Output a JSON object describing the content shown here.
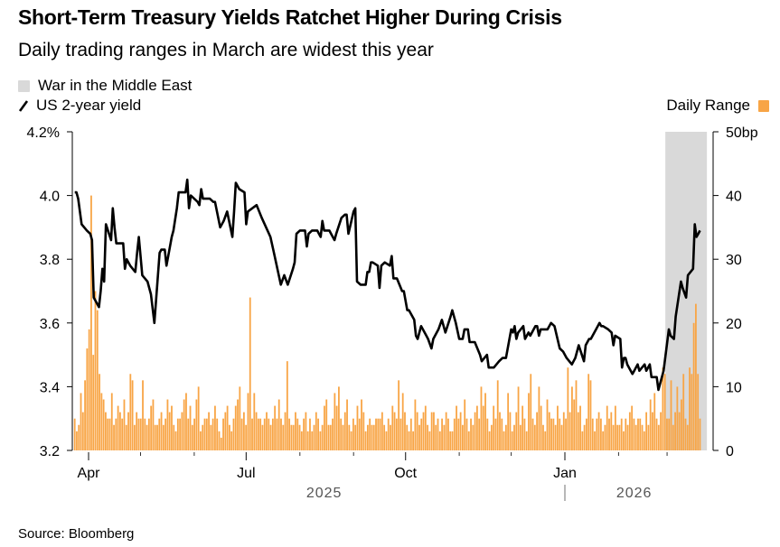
{
  "header": {
    "title": "Short-Term Treasury Yields Ratchet Higher During Crisis",
    "subtitle": "Daily trading ranges in March are widest this year"
  },
  "legend": {
    "shade_label": "War in the Middle East",
    "line_label": "US 2-year yield",
    "bar_label": "Daily Range"
  },
  "footer": {
    "source": "Source: Bloomberg"
  },
  "colors": {
    "line": "#000000",
    "bar": "#f8a546",
    "shade": "#d9d9d9",
    "axis": "#000000",
    "year_label": "#555555"
  },
  "chart_data": {
    "type": "line+bar",
    "title": "Short-Term Treasury Yields Ratchet Higher During Crisis",
    "subtitle": "Daily trading ranges in March are widest this year",
    "left_axis": {
      "label": "US 2-year yield (%)",
      "ylim": [
        3.2,
        4.2
      ],
      "ticks": [
        "3.2",
        "3.4",
        "3.6",
        "3.8",
        "4.0",
        "4.2%"
      ],
      "tick_values": [
        3.2,
        3.4,
        3.6,
        3.8,
        4.0,
        4.2
      ]
    },
    "right_axis": {
      "label": "Daily Range (bp)",
      "ylim": [
        0,
        50
      ],
      "ticks": [
        "0",
        "10",
        "20",
        "30",
        "40",
        "50bp"
      ],
      "tick_values": [
        0,
        10,
        20,
        30,
        40,
        50
      ]
    },
    "x_axis": {
      "start": "2025-03-21",
      "end": "2026-03-24",
      "major_ticks": [
        {
          "date": "2025-04-01",
          "label": "Apr"
        },
        {
          "date": "2025-07-01",
          "label": "Jul"
        },
        {
          "date": "2025-10-01",
          "label": "Oct"
        },
        {
          "date": "2026-01-01",
          "label": "Jan"
        }
      ],
      "minor_ticks": [
        "2025-05-01",
        "2025-06-01",
        "2025-08-01",
        "2025-09-01",
        "2025-11-01",
        "2025-12-01",
        "2026-02-01",
        "2026-03-01"
      ],
      "year_labels": [
        {
          "date": "2025-08-15",
          "label": "2025"
        },
        {
          "date": "2026-02-10",
          "label": "2026"
        }
      ],
      "year_divider": "2026-01-01"
    },
    "shaded_region": {
      "label": "War in the Middle East",
      "start": "2026-02-28",
      "end": "2026-03-24"
    },
    "line_series": {
      "name": "US 2-year yield",
      "points": [
        [
          "2025-03-24",
          4.01
        ],
        [
          "2025-03-25",
          4.01
        ],
        [
          "2025-03-26",
          3.99
        ],
        [
          "2025-03-28",
          3.91
        ],
        [
          "2025-03-31",
          3.89
        ],
        [
          "2025-04-02",
          3.88
        ],
        [
          "2025-04-03",
          3.86
        ],
        [
          "2025-04-04",
          3.68
        ],
        [
          "2025-04-07",
          3.65
        ],
        [
          "2025-04-08",
          3.7
        ],
        [
          "2025-04-09",
          3.77
        ],
        [
          "2025-04-10",
          3.73
        ],
        [
          "2025-04-11",
          3.91
        ],
        [
          "2025-04-14",
          3.86
        ],
        [
          "2025-04-15",
          3.96
        ],
        [
          "2025-04-16",
          3.9
        ],
        [
          "2025-04-17",
          3.85
        ],
        [
          "2025-04-21",
          3.85
        ],
        [
          "2025-04-22",
          3.77
        ],
        [
          "2025-04-23",
          3.8
        ],
        [
          "2025-04-25",
          3.78
        ],
        [
          "2025-04-28",
          3.76
        ],
        [
          "2025-04-29",
          3.82
        ],
        [
          "2025-04-30",
          3.87
        ],
        [
          "2025-05-02",
          3.75
        ],
        [
          "2025-05-05",
          3.73
        ],
        [
          "2025-05-07",
          3.69
        ],
        [
          "2025-05-09",
          3.6
        ],
        [
          "2025-05-12",
          3.82
        ],
        [
          "2025-05-13",
          3.83
        ],
        [
          "2025-05-15",
          3.83
        ],
        [
          "2025-05-16",
          3.78
        ],
        [
          "2025-05-19",
          3.87
        ],
        [
          "2025-05-20",
          3.89
        ],
        [
          "2025-05-22",
          3.96
        ],
        [
          "2025-05-23",
          4.01
        ],
        [
          "2025-05-27",
          4.01
        ],
        [
          "2025-05-28",
          4.05
        ],
        [
          "2025-05-29",
          3.96
        ],
        [
          "2025-05-30",
          4.0
        ],
        [
          "2025-06-03",
          3.98
        ],
        [
          "2025-06-04",
          3.97
        ],
        [
          "2025-06-05",
          4.02
        ],
        [
          "2025-06-06",
          3.99
        ],
        [
          "2025-06-10",
          3.99
        ],
        [
          "2025-06-12",
          3.98
        ],
        [
          "2025-06-13",
          3.98
        ],
        [
          "2025-06-16",
          3.9
        ],
        [
          "2025-06-18",
          3.92
        ],
        [
          "2025-06-20",
          3.95
        ],
        [
          "2025-06-23",
          3.87
        ],
        [
          "2025-06-24",
          3.95
        ],
        [
          "2025-06-25",
          4.04
        ],
        [
          "2025-06-27",
          4.02
        ],
        [
          "2025-06-30",
          4.01
        ],
        [
          "2025-07-01",
          3.91
        ],
        [
          "2025-07-02",
          3.95
        ],
        [
          "2025-07-07",
          3.97
        ],
        [
          "2025-07-10",
          3.93
        ],
        [
          "2025-07-15",
          3.87
        ],
        [
          "2025-07-17",
          3.82
        ],
        [
          "2025-07-21",
          3.72
        ],
        [
          "2025-07-23",
          3.75
        ],
        [
          "2025-07-25",
          3.72
        ],
        [
          "2025-07-28",
          3.77
        ],
        [
          "2025-07-29",
          3.79
        ],
        [
          "2025-07-30",
          3.88
        ],
        [
          "2025-08-01",
          3.89
        ],
        [
          "2025-08-04",
          3.89
        ],
        [
          "2025-08-05",
          3.84
        ],
        [
          "2025-08-06",
          3.88
        ],
        [
          "2025-08-08",
          3.89
        ],
        [
          "2025-08-11",
          3.89
        ],
        [
          "2025-08-12",
          3.88
        ],
        [
          "2025-08-13",
          3.87
        ],
        [
          "2025-08-14",
          3.92
        ],
        [
          "2025-08-15",
          3.89
        ],
        [
          "2025-08-18",
          3.89
        ],
        [
          "2025-08-19",
          3.88
        ],
        [
          "2025-08-21",
          3.86
        ],
        [
          "2025-08-22",
          3.88
        ],
        [
          "2025-08-25",
          3.93
        ],
        [
          "2025-08-27",
          3.94
        ],
        [
          "2025-08-28",
          3.94
        ],
        [
          "2025-08-29",
          3.88
        ],
        [
          "2025-09-01",
          3.95
        ],
        [
          "2025-09-02",
          3.96
        ],
        [
          "2025-09-03",
          3.73
        ],
        [
          "2025-09-05",
          3.72
        ],
        [
          "2025-09-08",
          3.72
        ],
        [
          "2025-09-09",
          3.76
        ],
        [
          "2025-09-10",
          3.76
        ],
        [
          "2025-09-11",
          3.79
        ],
        [
          "2025-09-12",
          3.79
        ],
        [
          "2025-09-15",
          3.78
        ],
        [
          "2025-09-16",
          3.71
        ],
        [
          "2025-09-17",
          3.78
        ],
        [
          "2025-09-19",
          3.79
        ],
        [
          "2025-09-22",
          3.78
        ],
        [
          "2025-09-23",
          3.81
        ],
        [
          "2025-09-24",
          3.74
        ],
        [
          "2025-09-26",
          3.74
        ],
        [
          "2025-09-29",
          3.7
        ],
        [
          "2025-09-30",
          3.7
        ],
        [
          "2025-10-02",
          3.64
        ],
        [
          "2025-10-03",
          3.64
        ],
        [
          "2025-10-06",
          3.61
        ],
        [
          "2025-10-07",
          3.56
        ],
        [
          "2025-10-08",
          3.55
        ],
        [
          "2025-10-10",
          3.59
        ],
        [
          "2025-10-13",
          3.56
        ],
        [
          "2025-10-14",
          3.55
        ],
        [
          "2025-10-16",
          3.52
        ],
        [
          "2025-10-17",
          3.55
        ],
        [
          "2025-10-20",
          3.58
        ],
        [
          "2025-10-22",
          3.61
        ],
        [
          "2025-10-24",
          3.57
        ],
        [
          "2025-10-27",
          3.62
        ],
        [
          "2025-10-28",
          3.64
        ],
        [
          "2025-10-30",
          3.6
        ],
        [
          "2025-11-01",
          3.55
        ],
        [
          "2025-11-03",
          3.55
        ],
        [
          "2025-11-04",
          3.58
        ],
        [
          "2025-11-06",
          3.58
        ],
        [
          "2025-11-07",
          3.54
        ],
        [
          "2025-11-10",
          3.54
        ],
        [
          "2025-11-13",
          3.5
        ],
        [
          "2025-11-14",
          3.48
        ],
        [
          "2025-11-17",
          3.5
        ],
        [
          "2025-11-18",
          3.46
        ],
        [
          "2025-11-19",
          3.46
        ],
        [
          "2025-11-21",
          3.46
        ],
        [
          "2025-11-24",
          3.48
        ],
        [
          "2025-11-26",
          3.49
        ],
        [
          "2025-11-28",
          3.49
        ],
        [
          "2025-12-01",
          3.58
        ],
        [
          "2025-12-02",
          3.57
        ],
        [
          "2025-12-03",
          3.59
        ],
        [
          "2025-12-04",
          3.55
        ],
        [
          "2025-12-05",
          3.57
        ],
        [
          "2025-12-08",
          3.59
        ],
        [
          "2025-12-09",
          3.55
        ],
        [
          "2025-12-11",
          3.57
        ],
        [
          "2025-12-12",
          3.56
        ],
        [
          "2025-12-15",
          3.59
        ],
        [
          "2025-12-16",
          3.59
        ],
        [
          "2025-12-17",
          3.56
        ],
        [
          "2025-12-18",
          3.58
        ],
        [
          "2025-12-22",
          3.58
        ],
        [
          "2025-12-24",
          3.6
        ],
        [
          "2025-12-26",
          3.59
        ],
        [
          "2025-12-29",
          3.52
        ],
        [
          "2025-12-31",
          3.51
        ],
        [
          "2026-01-02",
          3.49
        ],
        [
          "2026-01-05",
          3.47
        ],
        [
          "2026-01-07",
          3.49
        ],
        [
          "2026-01-08",
          3.51
        ],
        [
          "2026-01-09",
          3.53
        ],
        [
          "2026-01-12",
          3.48
        ],
        [
          "2026-01-13",
          3.53
        ],
        [
          "2026-01-15",
          3.55
        ],
        [
          "2026-01-16",
          3.55
        ],
        [
          "2026-01-19",
          3.58
        ],
        [
          "2026-01-20",
          3.59
        ],
        [
          "2026-01-21",
          3.6
        ],
        [
          "2026-01-22",
          3.59
        ],
        [
          "2026-01-23",
          3.59
        ],
        [
          "2026-01-26",
          3.58
        ],
        [
          "2026-01-28",
          3.57
        ],
        [
          "2026-01-29",
          3.53
        ],
        [
          "2026-01-30",
          3.56
        ],
        [
          "2026-02-02",
          3.55
        ],
        [
          "2026-02-03",
          3.46
        ],
        [
          "2026-02-04",
          3.49
        ],
        [
          "2026-02-05",
          3.49
        ],
        [
          "2026-02-06",
          3.47
        ],
        [
          "2026-02-09",
          3.44
        ],
        [
          "2026-02-10",
          3.45
        ],
        [
          "2026-02-11",
          3.46
        ],
        [
          "2026-02-12",
          3.47
        ],
        [
          "2026-02-13",
          3.45
        ],
        [
          "2026-02-16",
          3.47
        ],
        [
          "2026-02-17",
          3.45
        ],
        [
          "2026-02-19",
          3.47
        ],
        [
          "2026-02-20",
          3.43
        ],
        [
          "2026-02-23",
          3.43
        ],
        [
          "2026-02-24",
          3.39
        ],
        [
          "2026-02-27",
          3.45
        ],
        [
          "2026-03-02",
          3.58
        ],
        [
          "2026-03-03",
          3.56
        ],
        [
          "2026-03-05",
          3.55
        ],
        [
          "2026-03-06",
          3.62
        ],
        [
          "2026-03-09",
          3.73
        ],
        [
          "2026-03-10",
          3.71
        ],
        [
          "2026-03-12",
          3.68
        ],
        [
          "2026-03-13",
          3.75
        ],
        [
          "2026-03-16",
          3.77
        ],
        [
          "2026-03-17",
          3.91
        ],
        [
          "2026-03-18",
          3.87
        ],
        [
          "2026-03-19",
          3.88
        ],
        [
          "2026-03-20",
          3.89
        ]
      ]
    },
    "bar_series": {
      "name": "Daily Range",
      "values_bp": [
        5,
        3,
        4,
        9,
        6,
        11,
        16,
        19,
        40,
        15,
        25,
        22,
        12,
        9,
        8,
        6,
        5,
        5,
        9,
        4,
        5,
        7,
        6,
        5,
        8,
        4,
        6,
        12,
        11,
        4,
        6,
        5,
        5,
        11,
        5,
        4,
        5,
        7,
        8,
        4,
        4,
        5,
        6,
        4,
        5,
        8,
        6,
        7,
        4,
        3,
        5,
        5,
        6,
        8,
        9,
        5,
        7,
        4,
        5,
        8,
        10,
        3,
        4,
        5,
        5,
        6,
        4,
        5,
        7,
        5,
        3,
        2,
        5,
        6,
        7,
        4,
        3,
        5,
        7,
        8,
        10,
        5,
        6,
        4,
        9,
        24,
        5,
        9,
        6,
        5,
        5,
        4,
        5,
        6,
        5,
        4,
        5,
        7,
        5,
        8,
        5,
        4,
        6,
        14,
        5,
        4,
        4,
        6,
        5,
        4,
        3,
        5,
        6,
        3,
        5,
        3,
        4,
        6,
        5,
        3,
        4,
        7,
        8,
        4,
        4,
        5,
        9,
        7,
        10,
        5,
        4,
        6,
        8,
        4,
        3,
        5,
        4,
        7,
        5,
        8,
        6,
        3,
        4,
        5,
        4,
        4,
        5,
        5,
        5,
        6,
        4,
        3,
        5,
        4,
        7,
        6,
        5,
        11,
        5,
        9,
        6,
        4,
        3,
        5,
        3,
        8,
        6,
        4,
        5,
        6,
        7,
        4,
        3,
        6,
        6,
        4,
        5,
        3,
        5,
        4,
        6,
        5,
        3,
        3,
        5,
        7,
        5,
        6,
        4,
        8,
        5,
        3,
        5,
        4,
        6,
        7,
        5,
        10,
        7,
        9,
        5,
        3,
        4,
        7,
        5,
        11,
        6,
        5,
        3,
        4,
        9,
        6,
        3,
        4,
        6,
        10,
        4,
        7,
        5,
        3,
        9,
        12,
        5,
        4,
        6,
        10,
        7,
        4,
        3,
        8,
        6,
        5,
        5,
        4,
        7,
        5,
        4,
        6,
        5,
        13,
        6,
        10,
        8,
        11,
        6,
        7,
        3,
        4,
        5,
        12,
        11,
        5,
        3,
        5,
        6,
        5,
        3,
        4,
        7,
        5,
        6,
        4,
        7,
        4,
        4,
        5,
        3,
        5,
        4,
        6,
        7,
        5,
        4,
        5,
        5,
        4,
        3,
        6,
        4,
        8,
        6,
        9,
        5,
        4,
        6,
        13,
        12,
        5,
        5,
        11,
        4,
        6,
        10,
        6,
        8,
        12,
        5,
        4,
        13,
        12,
        20,
        23,
        12,
        5
      ]
    }
  }
}
